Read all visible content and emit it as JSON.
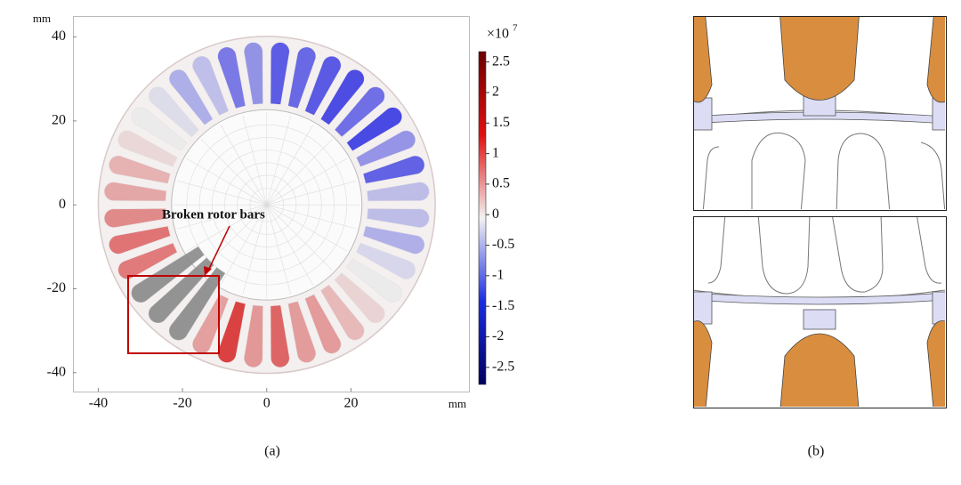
{
  "figure": {
    "panel_a": {
      "xlim": [
        -46,
        48
      ],
      "ylim": [
        -44.5,
        45
      ],
      "xticks": [
        -40,
        -20,
        0,
        20
      ],
      "yticks": [
        40,
        20,
        0,
        -20,
        -40
      ],
      "x_unit": "mm",
      "y_unit": "mm",
      "colorbar": {
        "base": "×10",
        "exponent": "7",
        "lim": [
          -2.78,
          2.67
        ],
        "ticks": [
          2.5,
          2,
          1.5,
          1,
          0.5,
          0,
          -0.5,
          -1,
          -1.5,
          -2,
          -2.5
        ]
      },
      "annotation": "Broken rotor bars",
      "caption": "(a)"
    },
    "panel_b": {
      "caption": "(b)"
    }
  }
}
